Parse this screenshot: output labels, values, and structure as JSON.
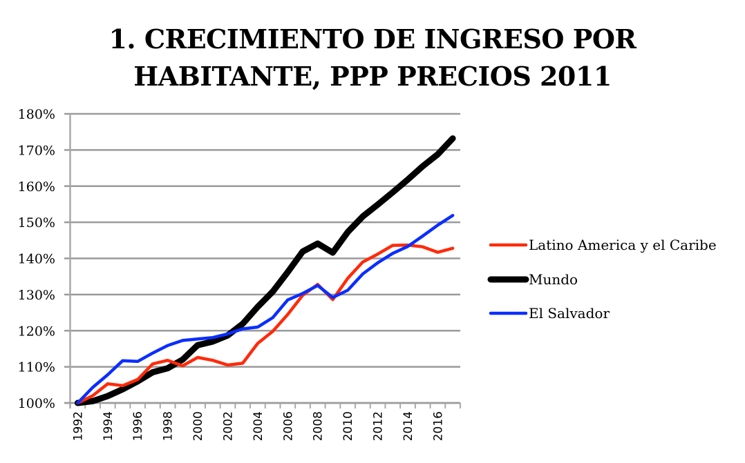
{
  "chart_data": {
    "type": "line",
    "title_lines": [
      "1. CRECIMIENTO DE INGRESO POR",
      "HABITANTE, PPP PRECIOS 2011"
    ],
    "xlabel": "",
    "ylabel": "",
    "ylim": [
      100,
      180
    ],
    "y_ticks": [
      "100%",
      "110%",
      "120%",
      "130%",
      "140%",
      "150%",
      "160%",
      "170%",
      "180%"
    ],
    "y_tick_values": [
      100,
      110,
      120,
      130,
      140,
      150,
      160,
      170,
      180
    ],
    "x": [
      1992,
      1993,
      1994,
      1995,
      1996,
      1997,
      1998,
      1999,
      2000,
      2001,
      2002,
      2003,
      2004,
      2005,
      2006,
      2007,
      2008,
      2009,
      2010,
      2011,
      2012,
      2013,
      2014,
      2015,
      2016,
      2017
    ],
    "x_tick_labels": [
      "1992",
      "1994",
      "1996",
      "1998",
      "2000",
      "2002",
      "2004",
      "2006",
      "2008",
      "2010",
      "2012",
      "2014",
      "2016"
    ],
    "grid": "horizontal",
    "legend_position": "right",
    "series": [
      {
        "name": "Latino America y el Caribe",
        "color": "#ff2a0a",
        "values": [
          100,
          102,
          105.3,
          104.8,
          106.5,
          110.8,
          111.8,
          110.3,
          112.6,
          111.8,
          110.5,
          111.0,
          116.5,
          119.8,
          124.5,
          129.8,
          132.8,
          128.6,
          134.5,
          139.0,
          141.2,
          143.6,
          143.7,
          143.2,
          141.7,
          142.8
        ]
      },
      {
        "name": "Mundo",
        "color": "#000000",
        "values": [
          100,
          100.5,
          101.9,
          103.8,
          106.0,
          108.5,
          109.6,
          112.0,
          116.0,
          117.0,
          118.7,
          121.9,
          126.6,
          130.8,
          136.2,
          141.9,
          144.1,
          141.6,
          147.3,
          151.6,
          154.9,
          158.3,
          161.8,
          165.5,
          168.8,
          173.2
        ]
      },
      {
        "name": "El Salvador",
        "color": "#0a2eff",
        "values": [
          100,
          104.3,
          107.8,
          111.7,
          111.5,
          113.8,
          115.9,
          117.3,
          117.7,
          118.1,
          119.1,
          120.5,
          121.0,
          123.6,
          128.5,
          130.3,
          132.5,
          129.2,
          131.2,
          135.7,
          138.8,
          141.4,
          143.3,
          146.2,
          149.2,
          151.9
        ]
      }
    ]
  }
}
